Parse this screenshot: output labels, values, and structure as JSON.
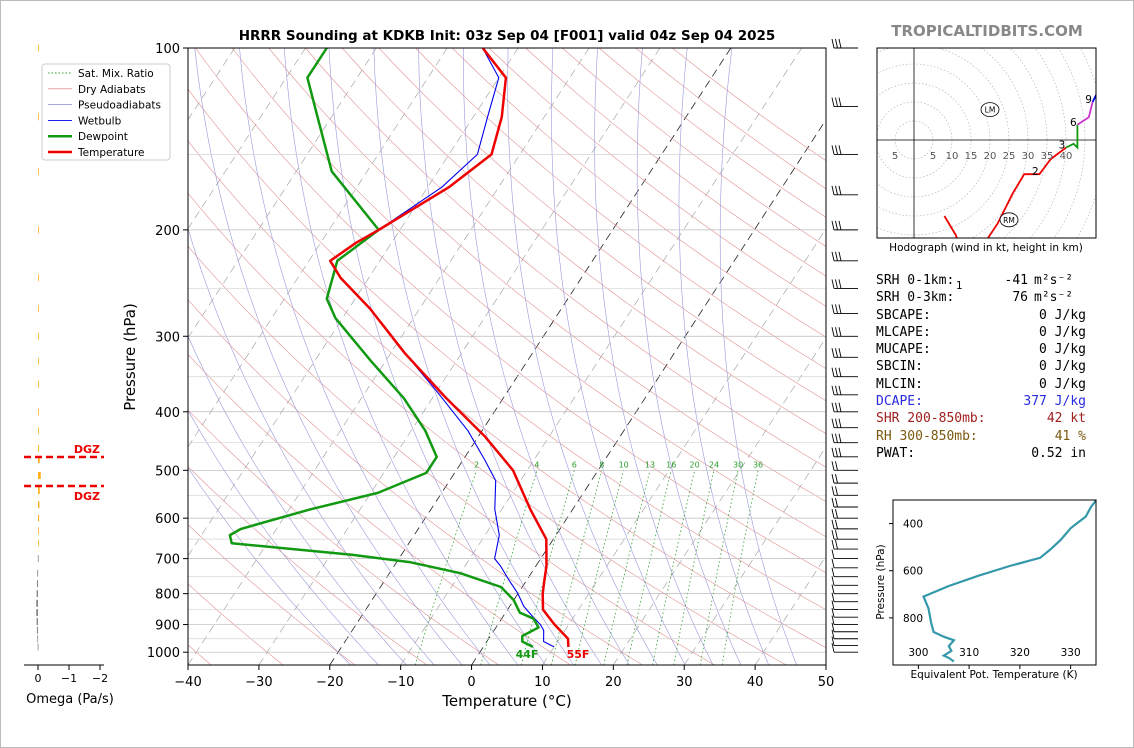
{
  "title": "HRRR Sounding at KDKB Init: 03z Sep 04 [F001] valid 04z Sep 04 2025",
  "watermark": "TROPICALTIDBITS.COM",
  "legend": [
    {
      "label": "Sat. Mix. Ratio",
      "color": "#2ca02c",
      "style": "dotted"
    },
    {
      "label": "Dry Adiabats",
      "color": "#e39191",
      "style": "solid"
    },
    {
      "label": "Pseudoadiabats",
      "color": "#9999dd",
      "style": "solid"
    },
    {
      "label": "Wetbulb",
      "color": "#0000ee",
      "style": "solid"
    },
    {
      "label": "Dewpoint",
      "color": "#119911",
      "style": "solid"
    },
    {
      "label": "Temperature",
      "color": "#ee0000",
      "style": "solid"
    }
  ],
  "surface_labels": {
    "dewpoint": "44F",
    "temperature": "55F"
  },
  "dgz_label": "DGZ",
  "omega_label": "Omega (Pa/s)",
  "omega_ticks": [
    "0",
    "−1",
    "−2"
  ],
  "hodograph": {
    "caption": "Hodograph (wind in kt, height in km)",
    "ring_labels": [
      "5",
      "10",
      "15",
      "20",
      "25",
      "30",
      "35",
      "40"
    ],
    "left_label": "5",
    "height_marks": [
      "1",
      "2",
      "3",
      "6",
      "9"
    ],
    "lm_label": "LM",
    "rm_label": "RM"
  },
  "stats": [
    {
      "label": "SRH 0-1km:",
      "value": "-41",
      "unit": "m²s⁻²",
      "color": "#000000"
    },
    {
      "label": "SRH 0-3km:",
      "value": "76",
      "unit": "m²s⁻²",
      "color": "#000000"
    },
    {
      "label": "SBCAPE:",
      "value": "0 J/kg",
      "unit": "",
      "color": "#000000"
    },
    {
      "label": "MLCAPE:",
      "value": "0 J/kg",
      "unit": "",
      "color": "#000000"
    },
    {
      "label": "MUCAPE:",
      "value": "0 J/kg",
      "unit": "",
      "color": "#000000"
    },
    {
      "label": "SBCIN:",
      "value": "0 J/kg",
      "unit": "",
      "color": "#000000"
    },
    {
      "label": "MLCIN:",
      "value": "0 J/kg",
      "unit": "",
      "color": "#000000"
    },
    {
      "label": "DCAPE:",
      "value": "377 J/kg",
      "unit": "",
      "color": "#2a2ae0"
    },
    {
      "label": "SHR 200-850mb:",
      "value": "42 kt",
      "unit": "",
      "color": "#a02020"
    },
    {
      "label": "RH 300-850mb:",
      "value": "41 %",
      "unit": "",
      "color": "#7a5a10"
    },
    {
      "label": "PWAT:",
      "value": "0.52 in",
      "unit": "",
      "color": "#000000"
    }
  ],
  "chart_data": [
    {
      "type": "line",
      "name": "skew-t",
      "title": "HRRR Sounding at KDKB Init: 03z Sep 04 [F001] valid 04z Sep 04 2025",
      "xlabel": "Temperature (°C)",
      "ylabel": "Pressure (hPa)",
      "xlim": [
        -40,
        50
      ],
      "ylim": [
        1050,
        100
      ],
      "y_log_scale": true,
      "x_ticks": [
        -40,
        -30,
        -20,
        -10,
        0,
        10,
        20,
        30,
        40,
        50
      ],
      "y_ticks": [
        100,
        200,
        300,
        400,
        500,
        600,
        700,
        800,
        900,
        1000
      ],
      "mixing_ratio_labels": [
        "2",
        "4",
        "6",
        "8",
        "10",
        "13",
        "16",
        "20",
        "24",
        "30",
        "36"
      ],
      "legend_position": "upper-left",
      "grid": true,
      "series": [
        {
          "name": "Temperature",
          "points": [
            [
              12.0,
              980
            ],
            [
              11.2,
              950
            ],
            [
              8,
              900
            ],
            [
              5,
              850
            ],
            [
              3.5,
              800
            ],
            [
              2.5,
              760
            ],
            [
              1.5,
              720
            ],
            [
              -1,
              650
            ],
            [
              -6,
              580
            ],
            [
              -12,
              500
            ],
            [
              -19,
              440
            ],
            [
              -28,
              380
            ],
            [
              -38,
              320
            ],
            [
              -47,
              270
            ],
            [
              -54,
              240
            ],
            [
              -57,
              225
            ],
            [
              -55,
              210
            ],
            [
              -53,
              200
            ],
            [
              -47,
              170
            ],
            [
              -44,
              150
            ],
            [
              -46,
              130
            ],
            [
              -49,
              112
            ],
            [
              -55,
              100
            ]
          ]
        },
        {
          "name": "Dewpoint",
          "points": [
            [
              7,
              980
            ],
            [
              5,
              960
            ],
            [
              4.5,
              940
            ],
            [
              6,
              910
            ],
            [
              4.5,
              880
            ],
            [
              2,
              860
            ],
            [
              0,
              820
            ],
            [
              -3,
              780
            ],
            [
              -10,
              740
            ],
            [
              -18,
              710
            ],
            [
              -27,
              690
            ],
            [
              -45,
              660
            ],
            [
              -46,
              640
            ],
            [
              -45,
              625
            ],
            [
              -37,
              580
            ],
            [
              -29,
              545
            ],
            [
              -24,
              505
            ],
            [
              -24,
              475
            ],
            [
              -28,
              430
            ],
            [
              -34,
              380
            ],
            [
              -42,
              330
            ],
            [
              -51,
              280
            ],
            [
              -54,
              260
            ],
            [
              -56,
              225
            ],
            [
              -53,
              200
            ],
            [
              -65,
              160
            ],
            [
              -72,
              130
            ],
            [
              -77,
              112
            ],
            [
              -77,
              100
            ]
          ]
        },
        {
          "name": "Wetbulb",
          "points": [
            [
              10,
              980
            ],
            [
              8,
              960
            ],
            [
              7,
              920
            ],
            [
              6,
              900
            ],
            [
              4,
              870
            ],
            [
              2,
              840
            ],
            [
              0,
              800
            ],
            [
              -2.5,
              760
            ],
            [
              -5,
              720
            ],
            [
              -6.5,
              700
            ],
            [
              -8,
              640
            ],
            [
              -11,
              580
            ],
            [
              -13.5,
              520
            ],
            [
              -17,
              480
            ],
            [
              -22,
              430
            ],
            [
              -30,
              370
            ],
            [
              -38,
              320
            ],
            [
              -47,
              270
            ],
            [
              -54,
              240
            ],
            [
              -57,
              225
            ],
            [
              -55,
              210
            ],
            [
              -53,
              200
            ],
            [
              -48,
              170
            ],
            [
              -46,
              150
            ],
            [
              -48,
              130
            ],
            [
              -50,
              112
            ],
            [
              -55,
              100
            ]
          ]
        }
      ]
    },
    {
      "type": "bar",
      "name": "omega",
      "xlabel": "Omega (Pa/s)",
      "xlim": [
        0.5,
        -2
      ],
      "values": [
        [
          100,
          -0.05
        ],
        [
          130,
          0
        ],
        [
          160,
          -0.05
        ],
        [
          200,
          0
        ],
        [
          240,
          -0.05
        ],
        [
          270,
          -0.05
        ],
        [
          300,
          -0.05
        ],
        [
          330,
          -0.08
        ],
        [
          360,
          -0.05
        ],
        [
          400,
          -0.05
        ],
        [
          430,
          -0.05
        ],
        [
          460,
          -0.12
        ],
        [
          480,
          -0.25
        ],
        [
          510,
          -0.4
        ],
        [
          540,
          -0.25
        ],
        [
          570,
          -0.2
        ],
        [
          600,
          -0.15
        ],
        [
          630,
          -0.1
        ],
        [
          660,
          -0.05
        ],
        [
          700,
          0.02
        ],
        [
          740,
          0.1
        ],
        [
          770,
          0.15
        ],
        [
          800,
          0.2
        ],
        [
          830,
          0.25
        ],
        [
          860,
          0.25
        ],
        [
          890,
          0.2
        ],
        [
          920,
          0.15
        ],
        [
          950,
          0.1
        ],
        [
          980,
          0.05
        ]
      ],
      "dgz_levels": [
        475,
        530
      ]
    },
    {
      "type": "line",
      "name": "hodograph",
      "units": "kt",
      "points": [
        [
          8,
          -20
        ],
        [
          11,
          -25
        ],
        [
          13,
          -31
        ],
        [
          14,
          -38
        ],
        [
          13,
          -39
        ],
        [
          13,
          -35
        ],
        [
          18,
          -28
        ],
        [
          22,
          -22
        ],
        [
          26,
          -14
        ],
        [
          29,
          -9
        ],
        [
          33,
          -9
        ],
        [
          36,
          -5
        ],
        [
          40,
          -2
        ],
        [
          42,
          -1
        ],
        [
          43,
          -2
        ],
        [
          43,
          4
        ],
        [
          46,
          6
        ],
        [
          47,
          10
        ],
        [
          48,
          12
        ],
        [
          48,
          18
        ]
      ],
      "storm_motion": {
        "LM": [
          20,
          8
        ],
        "RM": [
          25,
          -21
        ]
      }
    },
    {
      "type": "line",
      "name": "theta-e",
      "xlabel": "Equivalent Pot. Temperature (K)",
      "ylabel": "Pressure (hPa)",
      "xlim": [
        295,
        335
      ],
      "ylim": [
        1000,
        300
      ],
      "x_ticks": [
        300,
        310,
        320,
        330
      ],
      "y_ticks": [
        400,
        600,
        800
      ],
      "grid": false,
      "points": [
        [
          307,
          985
        ],
        [
          306,
          970
        ],
        [
          305,
          960
        ],
        [
          306.5,
          940
        ],
        [
          306,
          920
        ],
        [
          307,
          895
        ],
        [
          305,
          880
        ],
        [
          303,
          860
        ],
        [
          302.5,
          820
        ],
        [
          302,
          760
        ],
        [
          301,
          710
        ],
        [
          306,
          665
        ],
        [
          312,
          620
        ],
        [
          318,
          580
        ],
        [
          324,
          545
        ],
        [
          326,
          510
        ],
        [
          328,
          470
        ],
        [
          330,
          420
        ],
        [
          333,
          370
        ],
        [
          334,
          330
        ],
        [
          334.7,
          310
        ],
        [
          335,
          300
        ]
      ]
    }
  ]
}
